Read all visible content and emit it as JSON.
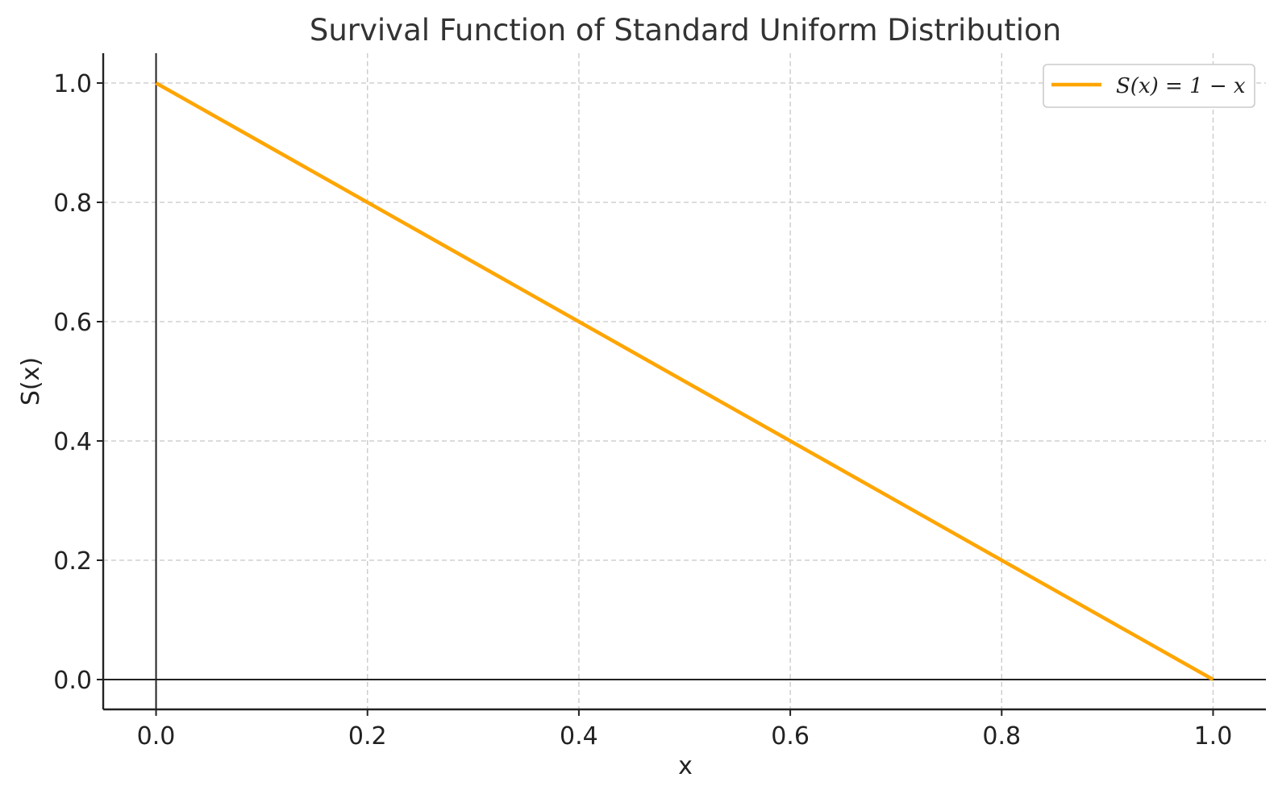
{
  "chart_data": {
    "type": "line",
    "title": "Survival Function of Standard Uniform Distribution",
    "xlabel": "x",
    "ylabel": "S(x)",
    "xlim": [
      -0.05,
      1.05
    ],
    "ylim": [
      -0.05,
      1.05
    ],
    "x_ticks": [
      0.0,
      0.2,
      0.4,
      0.6,
      0.8,
      1.0
    ],
    "y_ticks": [
      0.0,
      0.2,
      0.4,
      0.6,
      0.8,
      1.0
    ],
    "x_tick_labels": [
      "0.0",
      "0.2",
      "0.4",
      "0.6",
      "0.8",
      "1.0"
    ],
    "y_tick_labels": [
      "0.0",
      "0.2",
      "0.4",
      "0.6",
      "0.8",
      "1.0"
    ],
    "grid": true,
    "grid_style": "dashed",
    "reference_lines": {
      "x0": true,
      "y0": true
    },
    "legend_position": "top-right",
    "series": [
      {
        "name": "S(x) = 1 − x",
        "color": "#FFA500",
        "x": [
          0.0,
          0.2,
          0.4,
          0.6,
          0.8,
          1.0
        ],
        "y": [
          1.0,
          0.8,
          0.6,
          0.4,
          0.2,
          0.0
        ]
      }
    ]
  },
  "colors": {
    "axis": "#222222",
    "grid": "#c8c8c8",
    "title": "#333333"
  }
}
